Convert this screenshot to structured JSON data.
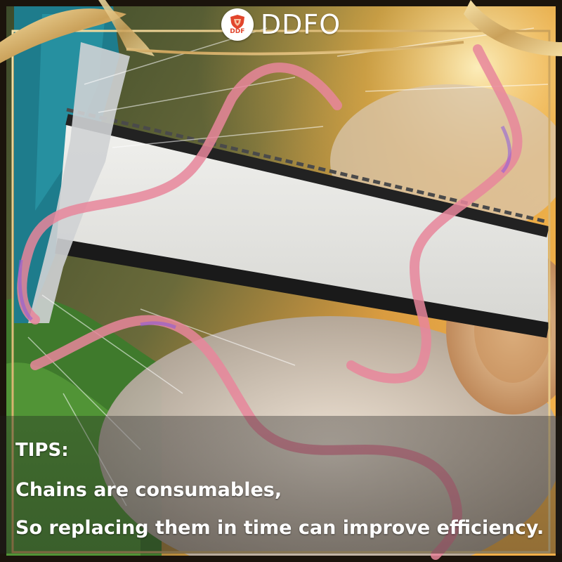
{
  "brand": {
    "logo_text": "DDF",
    "name": "DDFO"
  },
  "tips": {
    "title": "TIPS:",
    "line1": "Chains are consumables,",
    "line2": "So replacing them in time can improve efficiency."
  },
  "colors": {
    "accent_red": "#e2452c",
    "gold_frame": "#d8b36a",
    "ribbon_pink": "#e8869b",
    "ribbon_purple": "#8a5ae0"
  },
  "icons": {
    "logo": "shield-crest-icon"
  }
}
